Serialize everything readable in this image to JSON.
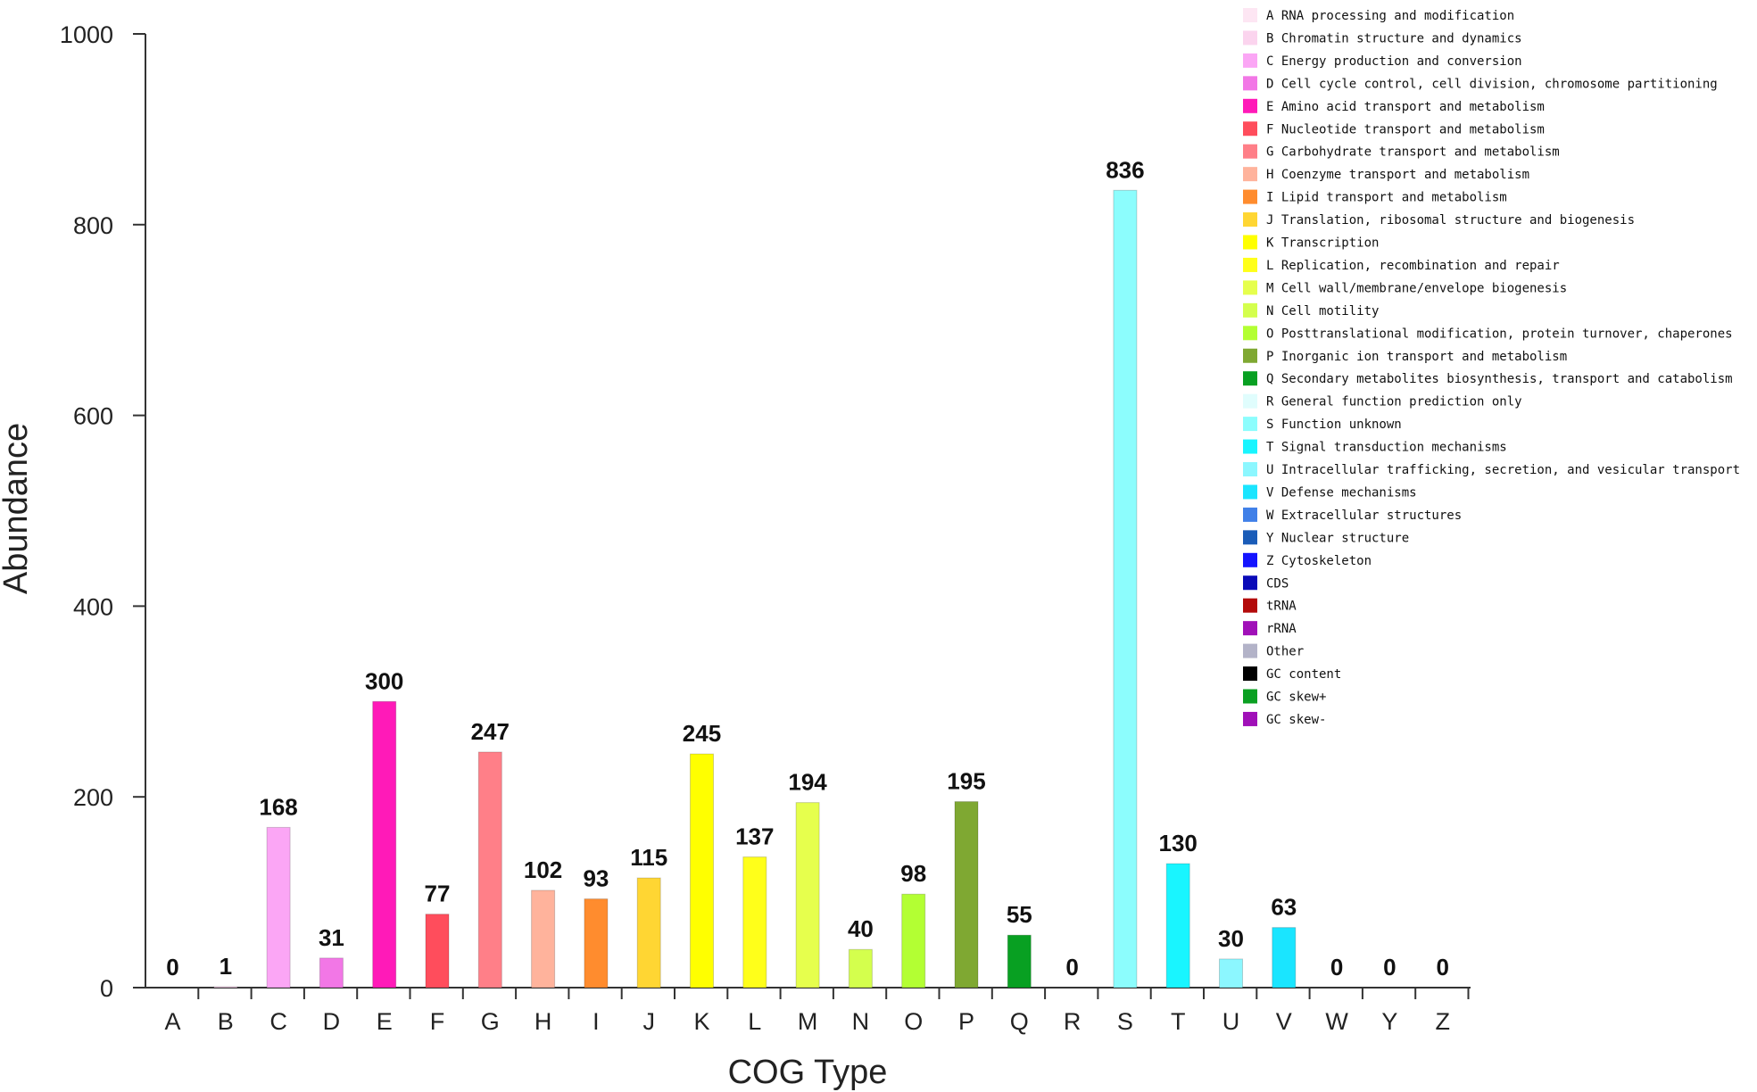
{
  "chart_data": {
    "type": "bar",
    "title": "",
    "xlabel": "COG Type",
    "ylabel": "Abundance",
    "ylim": [
      0,
      1000
    ],
    "yticks": [
      0,
      200,
      400,
      600,
      800,
      1000
    ],
    "grid": false,
    "legend_position": "top-right",
    "categories": [
      "A",
      "B",
      "C",
      "D",
      "E",
      "F",
      "G",
      "H",
      "I",
      "J",
      "K",
      "L",
      "M",
      "N",
      "O",
      "P",
      "Q",
      "R",
      "S",
      "T",
      "U",
      "V",
      "W",
      "Y",
      "Z"
    ],
    "values": [
      0,
      1,
      168,
      31,
      300,
      77,
      247,
      102,
      93,
      115,
      245,
      137,
      194,
      40,
      98,
      195,
      55,
      0,
      836,
      130,
      30,
      63,
      0,
      0,
      0
    ],
    "colors": [
      "#fde6f3",
      "#fbd4ee",
      "#fba6f5",
      "#f277e6",
      "#ff1ab8",
      "#ff4d5c",
      "#ff7f88",
      "#ffb39c",
      "#ff8c2e",
      "#ffd633",
      "#ffff00",
      "#ffff1a",
      "#e6ff4d",
      "#d4ff4d",
      "#b3ff33",
      "#7fa832",
      "#08a022",
      "#e0fdfd",
      "#8cfdfd",
      "#19f5ff",
      "#8cf7ff",
      "#1ae5ff",
      "#4080e8",
      "#1a5cb8",
      "#1414ff"
    ],
    "legend": [
      {
        "label": "A RNA processing and modification",
        "color": "#fde6f3"
      },
      {
        "label": "B Chromatin structure and dynamics",
        "color": "#fbd4ee"
      },
      {
        "label": "C Energy production and conversion",
        "color": "#fba6f5"
      },
      {
        "label": "D Cell cycle control, cell division, chromosome partitioning",
        "color": "#f277e6"
      },
      {
        "label": "E Amino acid transport and metabolism",
        "color": "#ff1ab8"
      },
      {
        "label": "F Nucleotide transport and metabolism",
        "color": "#ff4d5c"
      },
      {
        "label": "G Carbohydrate transport and metabolism",
        "color": "#ff7f88"
      },
      {
        "label": "H Coenzyme transport and metabolism",
        "color": "#ffb39c"
      },
      {
        "label": "I Lipid transport and metabolism",
        "color": "#ff8c2e"
      },
      {
        "label": "J Translation, ribosomal structure and biogenesis",
        "color": "#ffd633"
      },
      {
        "label": "K Transcription",
        "color": "#ffff00"
      },
      {
        "label": "L Replication, recombination and repair",
        "color": "#ffff1a"
      },
      {
        "label": "M Cell wall/membrane/envelope biogenesis",
        "color": "#e6ff4d"
      },
      {
        "label": "N Cell motility",
        "color": "#d4ff4d"
      },
      {
        "label": "O Posttranslational modification, protein turnover, chaperones",
        "color": "#b3ff33"
      },
      {
        "label": "P Inorganic ion transport and metabolism",
        "color": "#7fa832"
      },
      {
        "label": "Q Secondary metabolites biosynthesis, transport and catabolism",
        "color": "#08a022"
      },
      {
        "label": "R General function prediction only",
        "color": "#e0fdfd"
      },
      {
        "label": "S Function unknown",
        "color": "#8cfdfd"
      },
      {
        "label": "T Signal transduction mechanisms",
        "color": "#19f5ff"
      },
      {
        "label": "U Intracellular trafficking, secretion, and vesicular transport",
        "color": "#8cf7ff"
      },
      {
        "label": "V Defense mechanisms",
        "color": "#1ae5ff"
      },
      {
        "label": "W Extracellular structures",
        "color": "#4080e8"
      },
      {
        "label": "Y Nuclear structure",
        "color": "#1a5cb8"
      },
      {
        "label": "Z Cytoskeleton",
        "color": "#1414ff"
      },
      {
        "label": "CDS",
        "color": "#0a0ab8"
      },
      {
        "label": "tRNA",
        "color": "#b30a0a"
      },
      {
        "label": "rRNA",
        "color": "#a010b8"
      },
      {
        "label": "Other",
        "color": "#b3b3c8"
      },
      {
        "label": "GC content",
        "color": "#000000"
      },
      {
        "label": "GC skew+",
        "color": "#0aa022"
      },
      {
        "label": "GC skew-",
        "color": "#a010b8"
      }
    ]
  }
}
